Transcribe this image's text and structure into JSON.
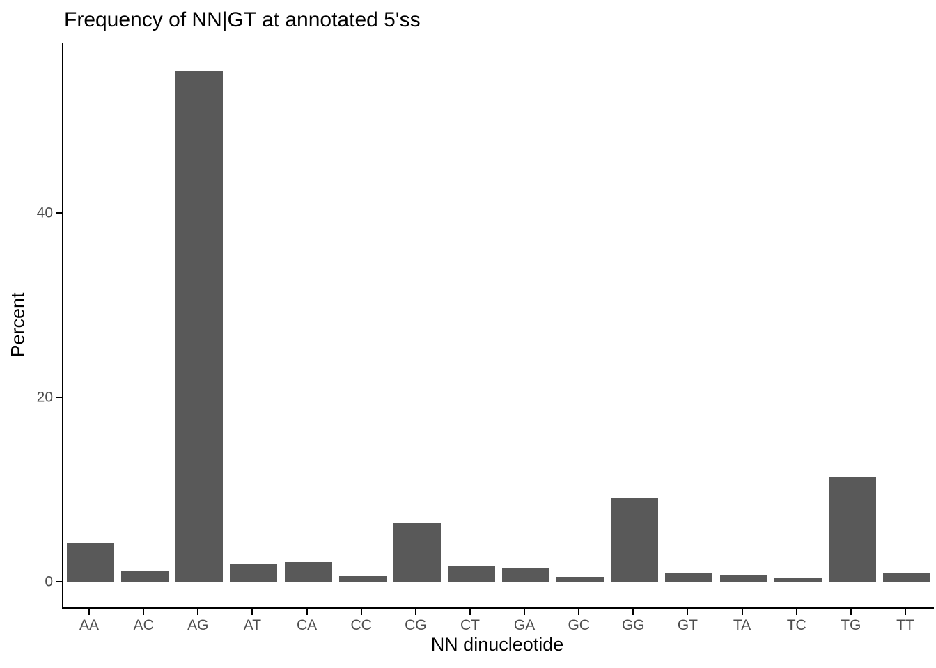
{
  "chart_data": {
    "type": "bar",
    "title": "Frequency of NN|GT at annotated 5'ss",
    "xlabel": "NN dinucleotide",
    "ylabel": "Percent",
    "categories": [
      "AA",
      "AC",
      "AG",
      "AT",
      "CA",
      "CC",
      "CG",
      "CT",
      "GA",
      "GC",
      "GG",
      "GT",
      "TA",
      "TC",
      "TG",
      "TT"
    ],
    "values": [
      4.2,
      1.1,
      55.4,
      1.9,
      2.2,
      0.6,
      6.4,
      1.7,
      1.4,
      0.5,
      9.1,
      1.0,
      0.7,
      0.4,
      11.3,
      0.9
    ],
    "yticks": [
      0,
      20,
      40
    ],
    "ylim": [
      -2.8,
      58.4
    ],
    "grid": false,
    "legend": false,
    "bar_color": "#595959",
    "axis_line_color": "#000000",
    "tick_label_color": "#4d4d4d",
    "title_color": "#000000"
  }
}
